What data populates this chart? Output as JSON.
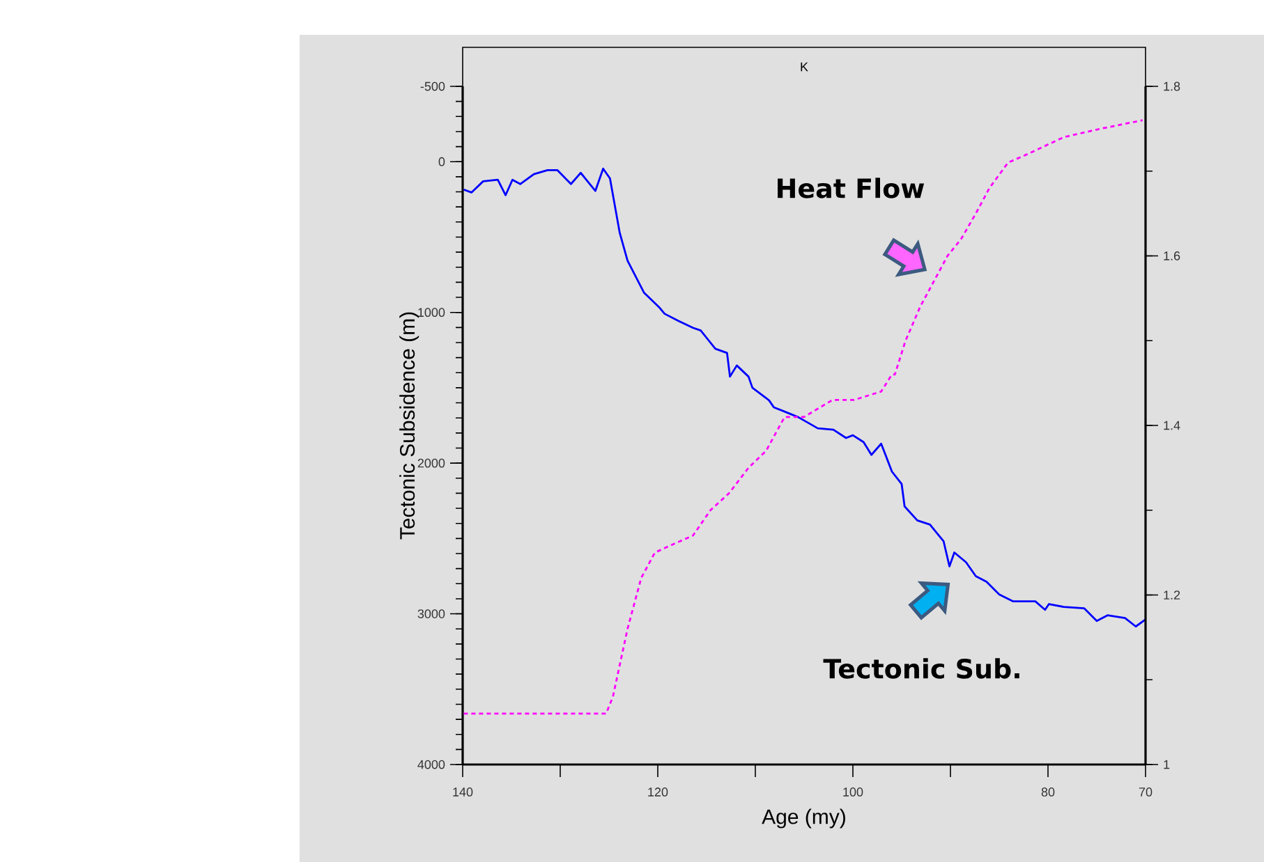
{
  "chart_data": {
    "type": "line",
    "xlabel": "Age (my)",
    "ylabel": "Tectonic Subsidence (m)",
    "annotations": [
      "K"
    ],
    "xlim": [
      140,
      70
    ],
    "xticks": [
      140,
      {
        "value": 130,
        "label": null
      },
      120,
      {
        "value": 110,
        "label": null
      },
      100,
      {
        "value": 90,
        "label": null
      },
      80,
      70
    ],
    "ylim": [
      4000,
      -500
    ],
    "yticks": [
      -500,
      0,
      1000,
      2000,
      3000,
      4000
    ],
    "y2lim": [
      1,
      1.8
    ],
    "y2ticks": [
      1,
      1.2,
      1.4,
      1.6,
      1.8
    ],
    "series": [
      {
        "name": "Tectonic Sub.",
        "color": "#0000ff",
        "line_style": "solid",
        "axis": "y",
        "x": [
          139.9,
          139.1,
          137.9,
          136.4,
          135.6,
          134.9,
          134.1,
          132.7,
          131.3,
          130.3,
          128.9,
          127.9,
          126.4,
          125.6,
          124.9,
          123.9,
          123.1,
          121.4,
          119.9,
          119.3,
          117.9,
          116.4,
          115.6,
          114.1,
          112.9,
          112.6,
          111.9,
          110.7,
          110.3,
          108.6,
          108.1,
          107.0,
          105.6,
          103.6,
          102.0,
          100.7,
          100.0,
          98.9,
          98.1,
          97.1,
          96.0,
          95.0,
          94.7,
          93.4,
          92.1,
          90.7,
          90.1,
          89.6,
          88.4,
          87.4,
          86.3,
          85.0,
          83.6,
          81.3,
          80.3,
          79.9,
          78.4,
          76.3,
          75.0,
          73.9,
          72.1,
          71.0,
          70.0
        ],
        "values": [
          185,
          204,
          130,
          120,
          222,
          120,
          148,
          83,
          56,
          56,
          148,
          74,
          194,
          46,
          111,
          472,
          657,
          870,
          963,
          1009,
          1056,
          1102,
          1120,
          1241,
          1269,
          1426,
          1352,
          1426,
          1500,
          1583,
          1630,
          1658,
          1695,
          1769,
          1778,
          1833,
          1815,
          1861,
          1945,
          1871,
          2056,
          2139,
          2287,
          2380,
          2408,
          2519,
          2685,
          2593,
          2658,
          2750,
          2787,
          2871,
          2917,
          2917,
          2973,
          2935,
          2954,
          2963,
          3047,
          3010,
          3028,
          3084,
          3037
        ]
      },
      {
        "name": "Heat Flow",
        "color": "#ff00ff",
        "line_style": "dashed",
        "axis": "y2",
        "x": [
          139.9,
          125.3,
          124.6,
          123.1,
          121.7,
          120.3,
          118.4,
          116.4,
          114.6,
          112.7,
          110.7,
          108.9,
          107.0,
          105.0,
          102.1,
          99.9,
          97.1,
          96.0,
          95.7,
          94.6,
          93.1,
          91.7,
          90.3,
          88.9,
          87.4,
          86.0,
          84.1,
          82.1,
          78.4,
          74.6,
          70.3
        ],
        "values": [
          1.06,
          1.06,
          1.08,
          1.16,
          1.22,
          1.25,
          1.26,
          1.27,
          1.3,
          1.32,
          1.35,
          1.37,
          1.41,
          1.41,
          1.43,
          1.43,
          1.44,
          1.46,
          1.46,
          1.5,
          1.54,
          1.57,
          1.6,
          1.62,
          1.65,
          1.68,
          1.71,
          1.72,
          1.74,
          1.75,
          1.76
        ]
      }
    ]
  }
}
